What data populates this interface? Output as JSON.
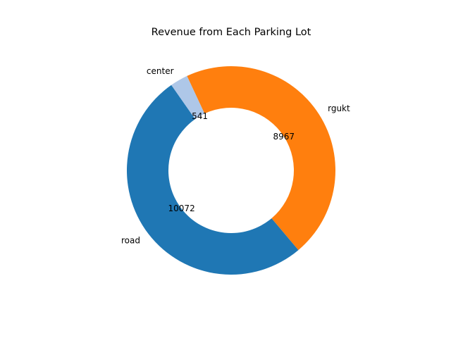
{
  "chart_data": {
    "type": "pie",
    "title": "Revenue from Each Parking Lot",
    "labels": [
      "road",
      "rgukt",
      "center"
    ],
    "values": [
      10072,
      8967,
      541
    ],
    "value_labels": [
      "10072",
      "8967",
      "541"
    ],
    "colors": [
      "#1f77b4",
      "#ff7f0e",
      "#aec7e8"
    ],
    "donut": true,
    "legend": "none"
  }
}
